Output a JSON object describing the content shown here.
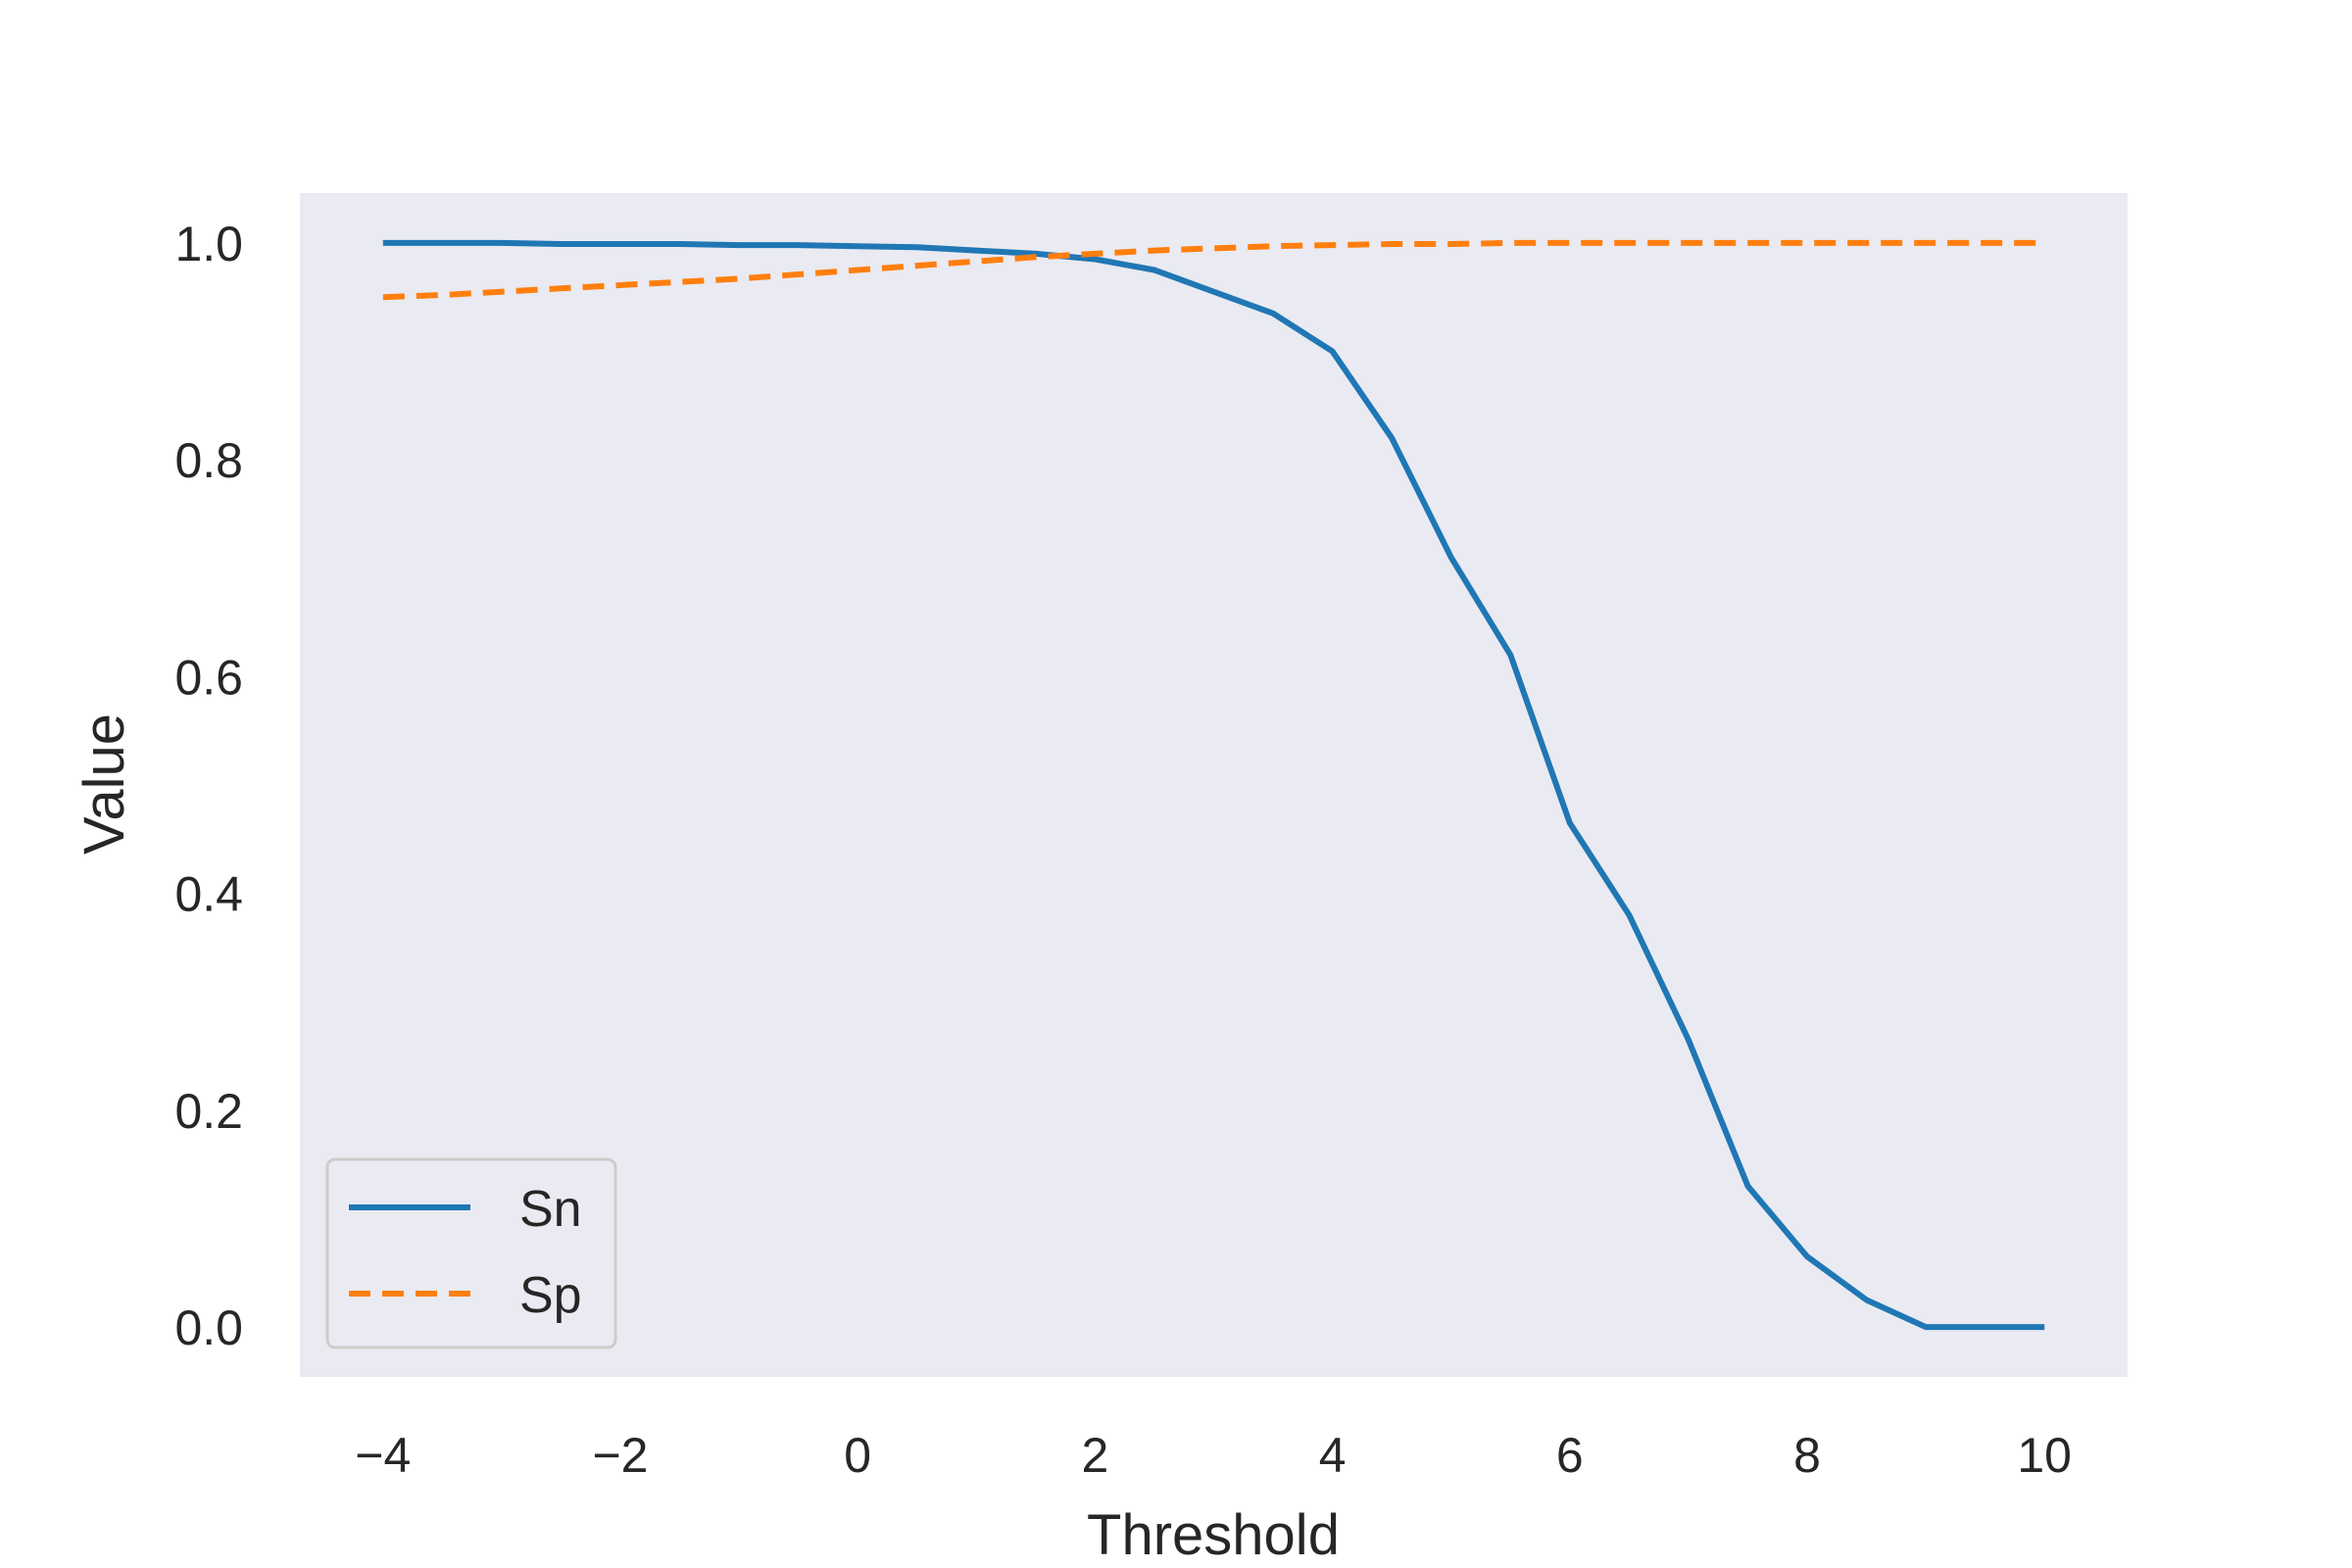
{
  "chart_data": {
    "type": "line",
    "xlabel": "Threshold",
    "ylabel": "Value",
    "xlim": [
      -4.7,
      10.7
    ],
    "ylim": [
      -0.046,
      1.046
    ],
    "x_ticks": [
      -4,
      -2,
      0,
      2,
      4,
      6,
      8,
      10
    ],
    "x_tick_labels": [
      "−4",
      "−2",
      "0",
      "2",
      "4",
      "6",
      "8",
      "10"
    ],
    "y_ticks": [
      0.0,
      0.2,
      0.4,
      0.6,
      0.8,
      1.0
    ],
    "y_tick_labels": [
      "0.0",
      "0.2",
      "0.4",
      "0.6",
      "0.8",
      "1.0"
    ],
    "grid": false,
    "background": "#eaeaf2",
    "legend_position": "lower-left",
    "x": [
      -4,
      -3.5,
      -3,
      -2.5,
      -2,
      -1.5,
      -1,
      -0.5,
      0,
      0.5,
      1,
      1.5,
      2,
      2.5,
      3,
      3.5,
      4,
      4.5,
      5,
      5.5,
      6,
      6.5,
      7,
      7.5,
      8,
      8.5,
      9,
      9.5,
      10
    ],
    "series": [
      {
        "name": "Sn",
        "color": "#1f77b4",
        "dash": "solid",
        "values": [
          1.0,
          1.0,
          1.0,
          0.999,
          0.999,
          0.999,
          0.998,
          0.998,
          0.997,
          0.996,
          0.993,
          0.99,
          0.985,
          0.975,
          0.955,
          0.935,
          0.9,
          0.82,
          0.71,
          0.62,
          0.465,
          0.38,
          0.265,
          0.13,
          0.065,
          0.025,
          0.0,
          0.0,
          0.0
        ]
      },
      {
        "name": "Sp",
        "color": "#ff7f0e",
        "dash": "dashed",
        "values": [
          0.95,
          0.952,
          0.955,
          0.958,
          0.961,
          0.964,
          0.967,
          0.971,
          0.975,
          0.979,
          0.983,
          0.987,
          0.99,
          0.993,
          0.995,
          0.997,
          0.998,
          0.999,
          0.999,
          1.0,
          1.0,
          1.0,
          1.0,
          1.0,
          1.0,
          1.0,
          1.0,
          1.0,
          1.0
        ]
      }
    ]
  }
}
